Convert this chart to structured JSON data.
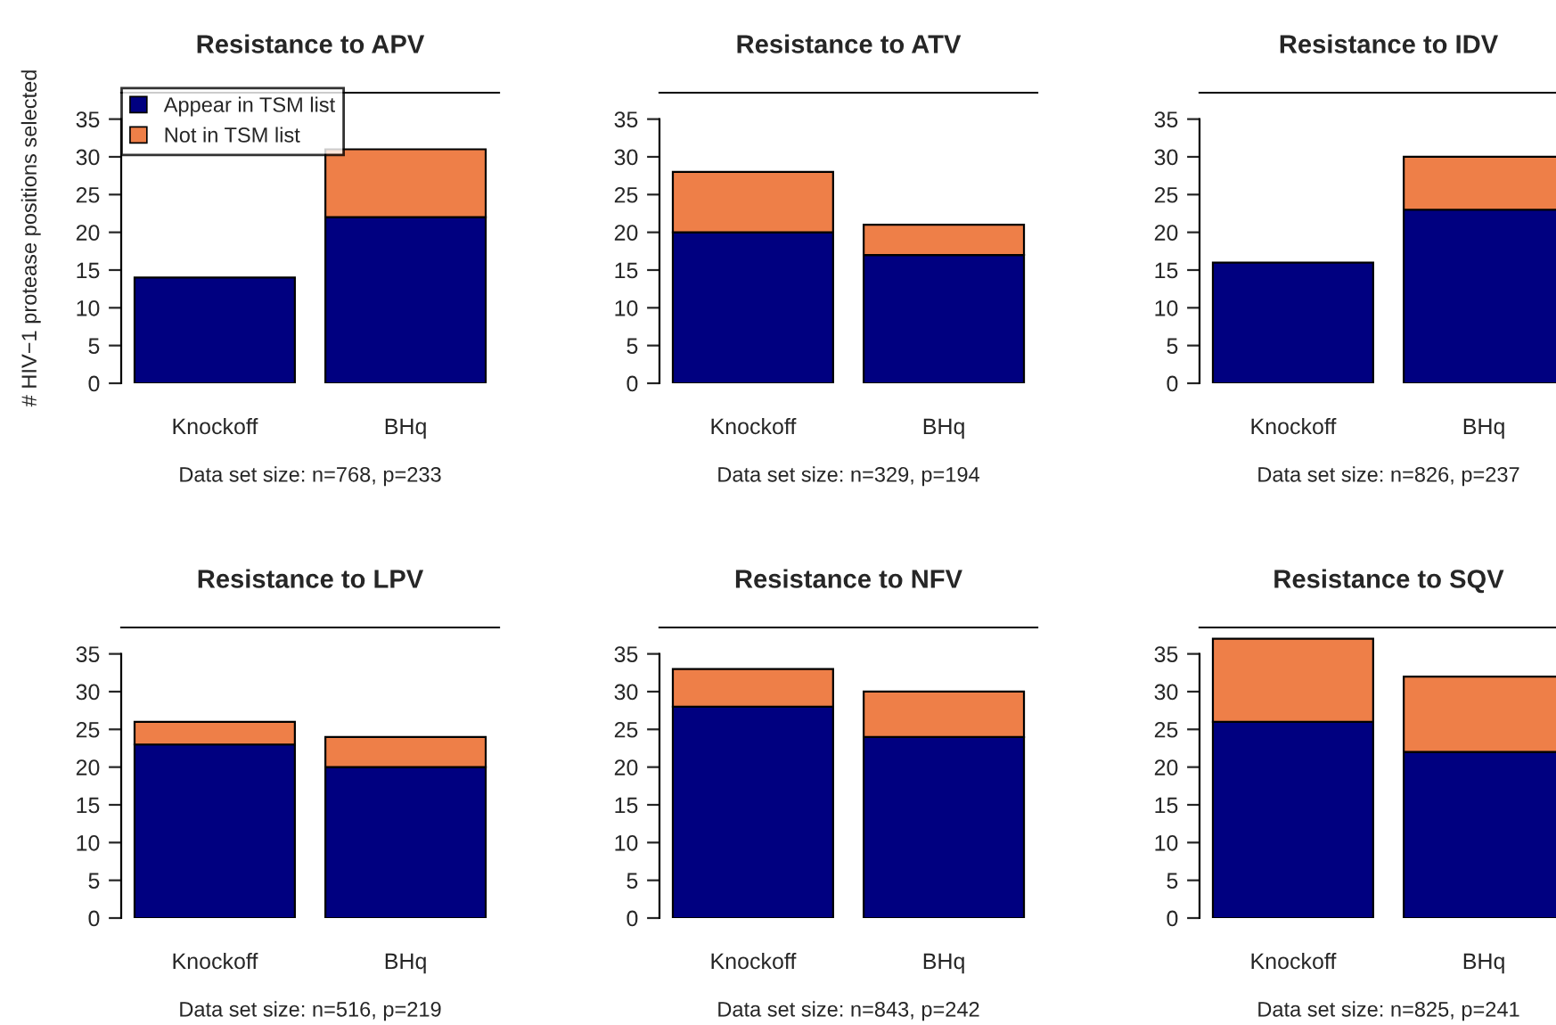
{
  "chart_data": [
    {
      "type": "bar",
      "stacked": true,
      "title": "Resistance to APV",
      "ylabel": "# HIV−1 protease positions selected",
      "categories": [
        "Knockoff",
        "BHq"
      ],
      "legend": "top left",
      "ylim": [
        0,
        38.5
      ],
      "yticks": [
        0,
        5,
        10,
        15,
        20,
        25,
        30,
        35
      ],
      "annotations": [
        "Data set size: n=768, p=233"
      ],
      "series": [
        {
          "name": "Appear in TSM list",
          "color": "#000080",
          "values": [
            14,
            22
          ]
        },
        {
          "name": "Not in TSM list",
          "color": "#ee7f48",
          "values": [
            null,
            9
          ]
        }
      ]
    },
    {
      "type": "bar",
      "stacked": true,
      "title": "Resistance to ATV",
      "categories": [
        "Knockoff",
        "BHq"
      ],
      "ylim": [
        0,
        38.5
      ],
      "yticks": [
        0,
        5,
        10,
        15,
        20,
        25,
        30,
        35
      ],
      "annotations": [
        "Data set size: n=329, p=194"
      ],
      "series": [
        {
          "color": "#000080",
          "values": [
            20,
            17
          ]
        },
        {
          "color": "#ee7f48",
          "values": [
            8,
            4
          ]
        }
      ]
    },
    {
      "type": "bar",
      "stacked": true,
      "title": "Resistance to IDV",
      "categories": [
        "Knockoff",
        "BHq"
      ],
      "ylim": [
        0,
        38.5
      ],
      "yticks": [
        0,
        5,
        10,
        15,
        20,
        25,
        30,
        35
      ],
      "annotations": [
        "Data set size: n=826, p=237"
      ],
      "series": [
        {
          "color": "#000080",
          "values": [
            16,
            23
          ]
        },
        {
          "color": "#ee7f48",
          "values": [
            null,
            7
          ]
        }
      ]
    },
    {
      "type": "bar",
      "stacked": true,
      "title": "Resistance to LPV",
      "categories": [
        "Knockoff",
        "BHq"
      ],
      "ylim": [
        0,
        38.5
      ],
      "yticks": [
        0,
        5,
        10,
        15,
        20,
        25,
        30,
        35
      ],
      "annotations": [
        "Data set size: n=516, p=219"
      ],
      "series": [
        {
          "color": "#000080",
          "values": [
            23,
            20
          ]
        },
        {
          "color": "#ee7f48",
          "values": [
            3,
            4
          ]
        }
      ]
    },
    {
      "type": "bar",
      "stacked": true,
      "title": "Resistance to NFV",
      "categories": [
        "Knockoff",
        "BHq"
      ],
      "ylim": [
        0,
        38.5
      ],
      "yticks": [
        0,
        5,
        10,
        15,
        20,
        25,
        30,
        35
      ],
      "annotations": [
        "Data set size: n=843, p=242"
      ],
      "series": [
        {
          "color": "#000080",
          "values": [
            28,
            24
          ]
        },
        {
          "color": "#ee7f48",
          "values": [
            5,
            6
          ]
        }
      ]
    },
    {
      "type": "bar",
      "stacked": true,
      "title": "Resistance to SQV",
      "categories": [
        "Knockoff",
        "BHq"
      ],
      "ylim": [
        0,
        38.5
      ],
      "yticks": [
        0,
        5,
        10,
        15,
        20,
        25,
        30,
        35
      ],
      "annotations": [
        "Data set size: n=825, p=241"
      ],
      "series": [
        {
          "color": "#000080",
          "values": [
            26,
            22
          ]
        },
        {
          "color": "#ee7f48",
          "values": [
            11,
            10
          ]
        }
      ]
    }
  ]
}
